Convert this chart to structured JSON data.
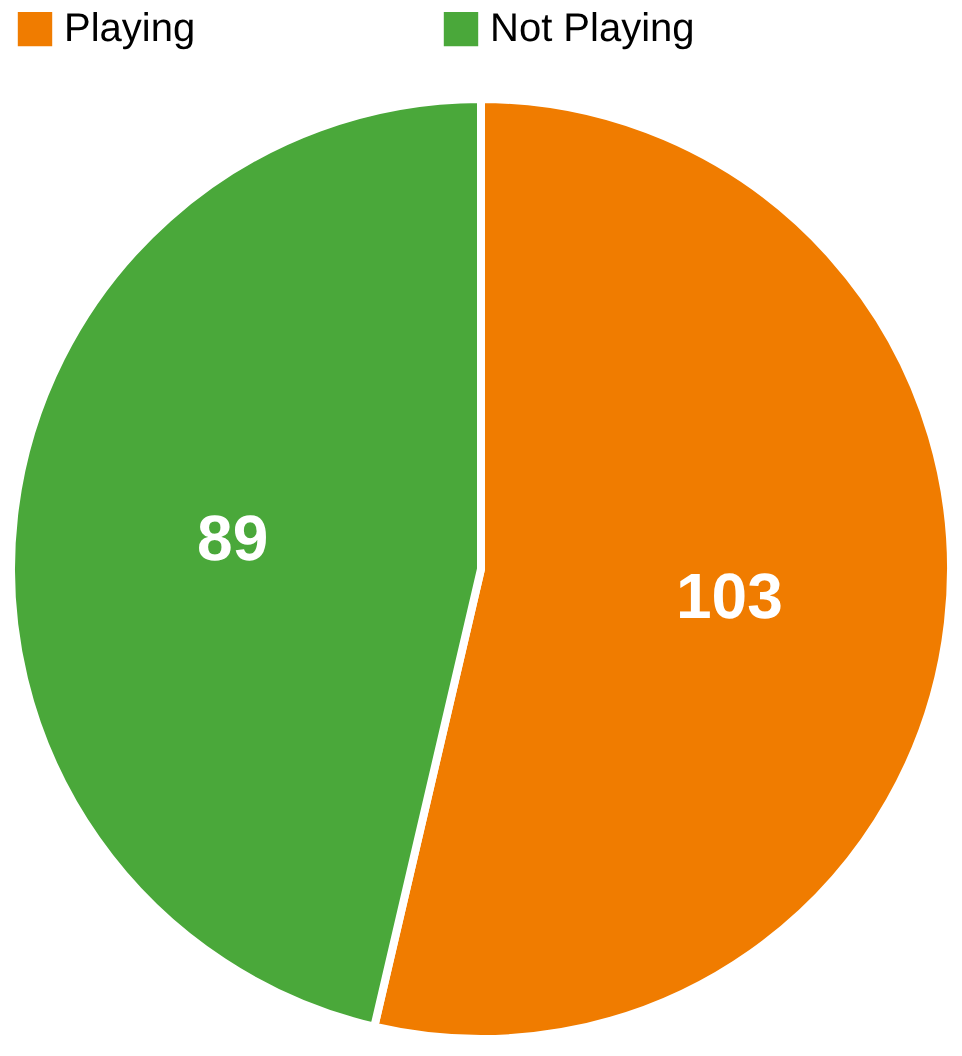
{
  "chart_data": {
    "type": "pie",
    "categories": [
      "Playing",
      "Not Playing"
    ],
    "values": [
      103,
      89
    ],
    "colors": [
      "#f07c00",
      "#4aa83a"
    ],
    "data_labels": true,
    "legend": "top"
  }
}
